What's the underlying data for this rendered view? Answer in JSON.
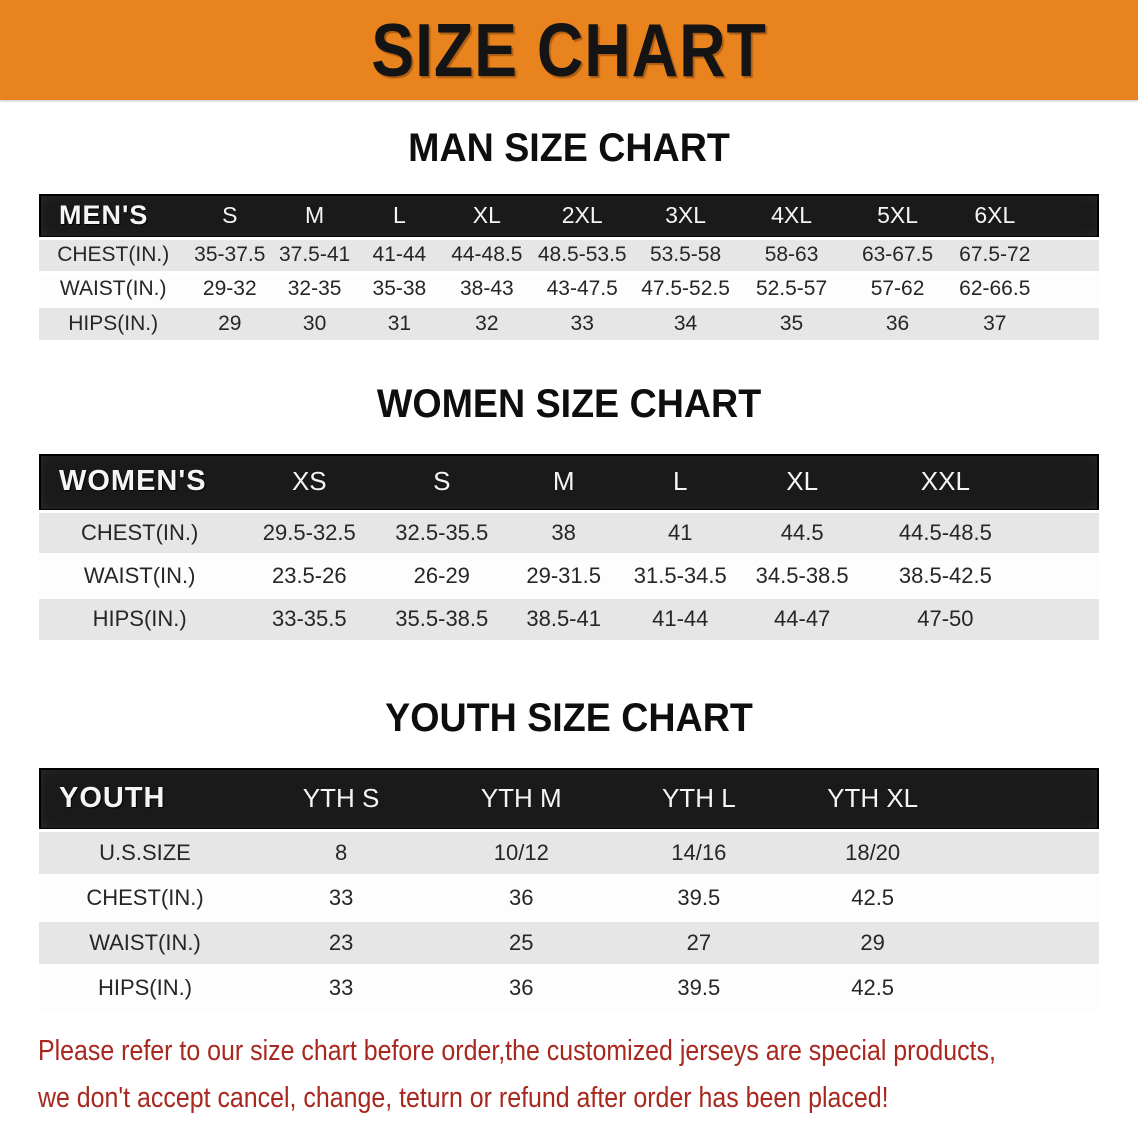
{
  "banner": {
    "title": "SIZE CHART",
    "bg_color": "#e8831e"
  },
  "sections": [
    {
      "heading": "MAN SIZE CHART",
      "table": {
        "header_label": "MEN'S",
        "columns": [
          "S",
          "M",
          "L",
          "XL",
          "2XL",
          "3XL",
          "4XL",
          "5XL",
          "6XL"
        ],
        "rows": [
          {
            "label": "CHEST(IN.)",
            "values": [
              "35-37.5",
              "37.5-41",
              "41-44",
              "44-48.5",
              "48.5-53.5",
              "53.5-58",
              "58-63",
              "63-67.5",
              "67.5-72"
            ]
          },
          {
            "label": "WAIST(IN.)",
            "values": [
              "29-32",
              "32-35",
              "35-38",
              "38-43",
              "43-47.5",
              "47.5-52.5",
              "52.5-57",
              "57-62",
              "62-66.5"
            ]
          },
          {
            "label": "HIPS(IN.)",
            "values": [
              "29",
              "30",
              "31",
              "32",
              "33",
              "34",
              "35",
              "36",
              "37"
            ]
          }
        ]
      }
    },
    {
      "heading": "WOMEN SIZE CHART",
      "table": {
        "header_label": "WOMEN'S",
        "columns": [
          "XS",
          "S",
          "M",
          "L",
          "XL",
          "XXL"
        ],
        "rows": [
          {
            "label": "CHEST(IN.)",
            "values": [
              "29.5-32.5",
              "32.5-35.5",
              "38",
              "41",
              "44.5",
              "44.5-48.5"
            ]
          },
          {
            "label": "WAIST(IN.)",
            "values": [
              "23.5-26",
              "26-29",
              "29-31.5",
              "31.5-34.5",
              "34.5-38.5",
              "38.5-42.5"
            ]
          },
          {
            "label": "HIPS(IN.)",
            "values": [
              "33-35.5",
              "35.5-38.5",
              "38.5-41",
              "41-44",
              "44-47",
              "47-50"
            ]
          }
        ]
      }
    },
    {
      "heading": "YOUTH SIZE CHART",
      "table": {
        "header_label": "YOUTH",
        "columns": [
          "YTH S",
          "YTH M",
          "YTH L",
          "YTH XL"
        ],
        "rows": [
          {
            "label": "U.S.SIZE",
            "values": [
              "8",
              "10/12",
              "14/16",
              "18/20"
            ]
          },
          {
            "label": "CHEST(IN.)",
            "values": [
              "33",
              "36",
              "39.5",
              "42.5"
            ]
          },
          {
            "label": "WAIST(IN.)",
            "values": [
              "23",
              "25",
              "27",
              "29"
            ]
          },
          {
            "label": "HIPS(IN.)",
            "values": [
              "33",
              "36",
              "39.5",
              "42.5"
            ]
          }
        ]
      }
    }
  ],
  "disclaimer": {
    "line1": "Please refer to our size chart before order,the customized jerseys are special products,",
    "line2": "we don't accept cancel, change, teturn or refund after order has been placed!",
    "color": "#a8281f"
  }
}
